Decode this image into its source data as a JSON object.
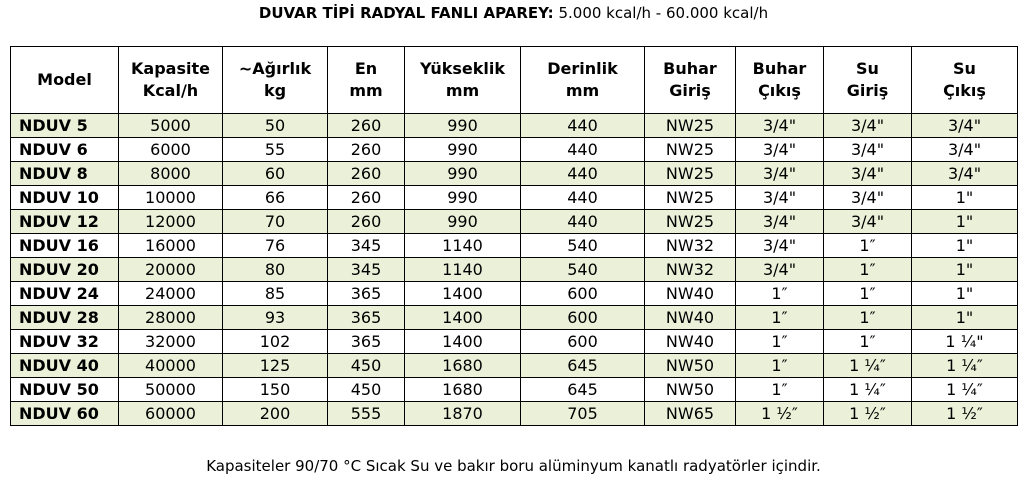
{
  "title": {
    "bold": "DUVAR TİPİ RADYAL FANLI APAREY:",
    "normal": "5.000 kcal/h - 60.000 kcal/h"
  },
  "table": {
    "header": [
      [
        "Model"
      ],
      [
        "Kapasite",
        "Kcal/h"
      ],
      [
        "~Ağırlık",
        "kg"
      ],
      [
        "En",
        "mm"
      ],
      [
        "Yükseklik",
        "mm"
      ],
      [
        "Derinlik",
        "mm"
      ],
      [
        "Buhar",
        "Giriş"
      ],
      [
        "Buhar",
        "Çıkış"
      ],
      [
        "Su",
        "Giriş"
      ],
      [
        "Su",
        "Çıkış"
      ]
    ],
    "rows": [
      [
        "NDUV 5",
        5000,
        50,
        260,
        990,
        440,
        "NW25",
        "3/4\"",
        "3/4\"",
        "3/4\""
      ],
      [
        "NDUV 6",
        6000,
        55,
        260,
        990,
        440,
        "NW25",
        "3/4\"",
        "3/4\"",
        "3/4\""
      ],
      [
        "NDUV 8",
        8000,
        60,
        260,
        990,
        440,
        "NW25",
        "3/4\"",
        "3/4\"",
        "3/4\""
      ],
      [
        "NDUV 10",
        10000,
        66,
        260,
        990,
        440,
        "NW25",
        "3/4\"",
        "3/4\"",
        "1\""
      ],
      [
        "NDUV 12",
        12000,
        70,
        260,
        990,
        440,
        "NW25",
        "3/4\"",
        "3/4\"",
        "1\""
      ],
      [
        "NDUV 16",
        16000,
        76,
        345,
        1140,
        540,
        "NW32",
        "3/4\"",
        "1″",
        "1\""
      ],
      [
        "NDUV 20",
        20000,
        80,
        345,
        1140,
        540,
        "NW32",
        "3/4\"",
        "1″",
        "1\""
      ],
      [
        "NDUV 24",
        24000,
        85,
        365,
        1400,
        600,
        "NW40",
        "1″",
        "1″",
        "1\""
      ],
      [
        "NDUV 28",
        28000,
        93,
        365,
        1400,
        600,
        "NW40",
        "1″",
        "1″",
        "1\""
      ],
      [
        "NDUV 32",
        32000,
        102,
        365,
        1400,
        600,
        "NW40",
        "1″",
        "1″",
        "1 ¼\""
      ],
      [
        "NDUV 40",
        40000,
        125,
        450,
        1680,
        645,
        "NW50",
        "1″",
        "1 ¼″",
        "1 ¼″"
      ],
      [
        "NDUV 50",
        50000,
        150,
        450,
        1680,
        645,
        "NW50",
        "1″",
        "1 ¼″",
        "1 ¼″"
      ],
      [
        "NDUV 60",
        60000,
        200,
        555,
        1870,
        705,
        "NW65",
        "1 ½″",
        "1 ½″",
        "1 ½″"
      ]
    ]
  },
  "footer": "Kapasiteler 90/70 °C Sıcak Su ve bakır boru alüminyum kanatlı radyatörler içindir."
}
